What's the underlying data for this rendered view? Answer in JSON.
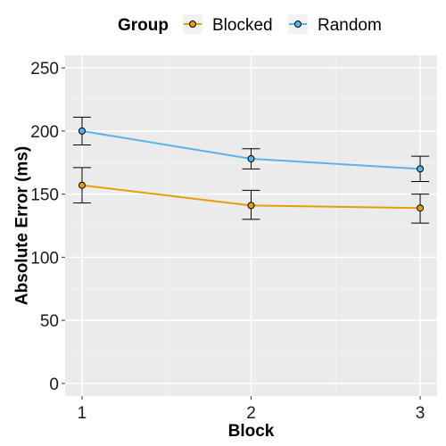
{
  "chart_data": {
    "type": "line",
    "xlabel": "Block",
    "ylabel": "Absolute Error (ms)",
    "x": [
      1,
      2,
      3
    ],
    "x_tick_labels": [
      "1",
      "2",
      "3"
    ],
    "xlim": [
      0.9,
      3.1
    ],
    "ylim": [
      -10,
      260
    ],
    "y_ticks": [
      0,
      50,
      100,
      150,
      200,
      250
    ],
    "y_tick_labels": [
      "0",
      "50",
      "100",
      "150",
      "200",
      "250"
    ],
    "grid": true,
    "legend": {
      "title": "Group",
      "placement": "top"
    },
    "series": [
      {
        "name": "Blocked",
        "color": "#E69F00",
        "values": [
          157,
          141,
          139
        ],
        "error_low": [
          143,
          130,
          127
        ],
        "error_high": [
          171,
          153,
          150
        ]
      },
      {
        "name": "Random",
        "color": "#56B4E9",
        "values": [
          200,
          178,
          170
        ],
        "error_low": [
          189,
          170,
          160
        ],
        "error_high": [
          211,
          186,
          180
        ]
      }
    ]
  }
}
